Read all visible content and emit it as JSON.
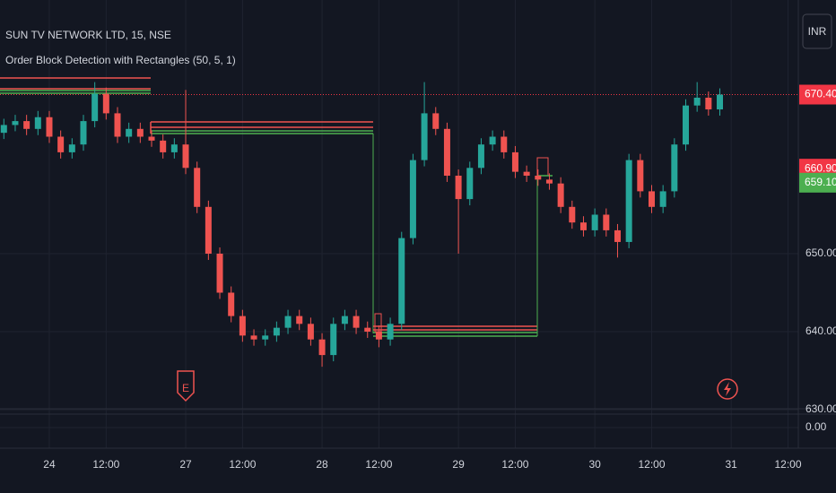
{
  "chart_data": {
    "type": "candlestick",
    "title": "SUN TV NETWORK LTD, 15, NSE",
    "subtitle": "Order Block Detection with Rectangles (50, 5, 1)",
    "currency": "INR",
    "up_color": "#26a69a",
    "down_color": "#ef5350",
    "categories": [
      null,
      null,
      null,
      null,
      "24",
      null,
      null,
      null,
      null,
      "12:00",
      null,
      null,
      null,
      null,
      null,
      null,
      "27",
      null,
      null,
      null,
      null,
      "12:00",
      null,
      null,
      null,
      null,
      null,
      null,
      "28",
      null,
      null,
      null,
      null,
      "12:00",
      null,
      null,
      null,
      null,
      null,
      null,
      "29",
      null,
      null,
      null,
      null,
      "12:00",
      null,
      null,
      null,
      null,
      null,
      null,
      "30",
      null,
      null,
      null,
      null,
      "12:00",
      null,
      null,
      null,
      null,
      null,
      null,
      "31",
      null,
      null,
      null,
      null,
      "12:00"
    ],
    "open": [
      665.5,
      666.5,
      667,
      666,
      667.5,
      665,
      663,
      664,
      667,
      670.5,
      668,
      665,
      666,
      665,
      664.5,
      663,
      664,
      661,
      656,
      650,
      645,
      642,
      639.5,
      639,
      639.5,
      640.5,
      642,
      641,
      639,
      637,
      641,
      642,
      640.5,
      640,
      639,
      641,
      652,
      662,
      668,
      666,
      660,
      657,
      661,
      664,
      665,
      663,
      660.5,
      660,
      659.5,
      659,
      656,
      654,
      653,
      655,
      653,
      651.5,
      662,
      658,
      656,
      658,
      664,
      669,
      670,
      668.5,
      null,
      null,
      null,
      null,
      null,
      null
    ],
    "high": [
      667.3,
      667.8,
      667.8,
      668.3,
      668.3,
      665.8,
      664.8,
      667.8,
      672,
      671.3,
      668.8,
      666.8,
      666.8,
      665.8,
      665.3,
      664.8,
      671,
      661.8,
      656.8,
      650.8,
      645.8,
      642.8,
      640.3,
      640.3,
      641.3,
      642.8,
      642.8,
      641.8,
      639.8,
      641.8,
      642.8,
      642.8,
      641.3,
      640.8,
      641.8,
      652.8,
      662.8,
      672,
      668.8,
      666.8,
      660.8,
      661.8,
      664.8,
      665.8,
      665.8,
      663.8,
      661.3,
      660.8,
      660.3,
      659.8,
      656.8,
      654.8,
      655.8,
      655.8,
      653.8,
      662.8,
      662.8,
      658.8,
      658.8,
      664.8,
      669.8,
      672,
      670.8,
      671.2,
      null,
      null,
      null,
      null,
      null,
      null
    ],
    "low": [
      664.7,
      665.7,
      665.2,
      665.2,
      664.2,
      662.2,
      662.2,
      663.2,
      666.2,
      667.2,
      664.2,
      664.2,
      664.2,
      663.7,
      662.2,
      662.2,
      660.2,
      655.2,
      649.2,
      644.2,
      641.2,
      638.7,
      638.2,
      638.2,
      638.7,
      639.7,
      640.2,
      638.2,
      635.5,
      636.2,
      640.2,
      639.7,
      639.2,
      638,
      638.2,
      640.2,
      651.2,
      661.2,
      665.2,
      659.2,
      650,
      656.2,
      660.2,
      663.2,
      662.2,
      659.7,
      659.2,
      658.7,
      658.2,
      655.2,
      653.2,
      652.2,
      652.2,
      652.2,
      649.5,
      650.7,
      657.2,
      655.2,
      655.2,
      657.2,
      663.2,
      668.2,
      667.7,
      667.7,
      null,
      null,
      null,
      null,
      null,
      null
    ],
    "close": [
      666.5,
      667,
      666,
      667.5,
      665,
      663,
      664,
      667,
      670.5,
      668,
      665,
      666,
      665,
      664.5,
      663,
      664,
      661,
      656,
      650,
      645,
      642,
      639.5,
      639,
      639.5,
      640.5,
      642,
      641,
      639,
      637,
      641,
      642,
      640.5,
      640,
      639,
      641,
      652,
      662,
      668,
      666,
      660,
      657,
      661,
      664,
      665,
      663,
      660.5,
      660,
      659.5,
      659,
      656,
      654,
      653,
      655,
      653,
      651.5,
      662,
      658,
      656,
      658,
      664,
      669,
      670,
      668.5,
      670.4,
      null,
      null,
      null,
      null,
      null,
      null
    ],
    "yticks": [
      {
        "value": 630,
        "label": "630.00"
      },
      {
        "value": 640,
        "label": "640.00"
      },
      {
        "value": 650,
        "label": "650.00"
      }
    ],
    "grid": true,
    "price_labels": [
      {
        "value": 670.4,
        "label": "670.40",
        "color": "#f23645"
      },
      {
        "value": 660.9,
        "label": "660.90",
        "color": "#f23645"
      },
      {
        "value": 659.1,
        "label": "659.10",
        "color": "#4caf50"
      }
    ],
    "lower_pane": {
      "yticks": [
        {
          "value": 0,
          "label": "0.00"
        }
      ]
    }
  }
}
